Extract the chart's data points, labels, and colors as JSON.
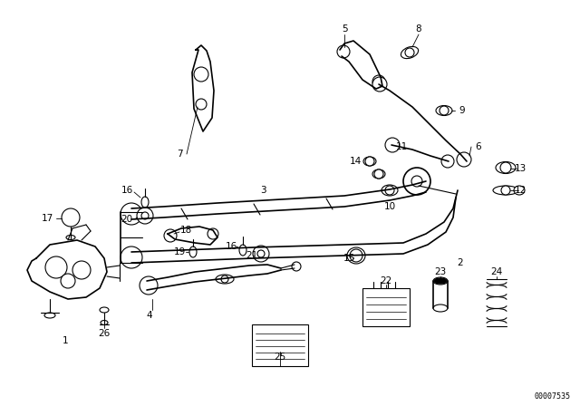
{
  "bg_color": "#ffffff",
  "diagram_color": "#000000",
  "part_number_text": "00007535",
  "figsize": [
    6.4,
    4.48
  ],
  "dpi": 100
}
